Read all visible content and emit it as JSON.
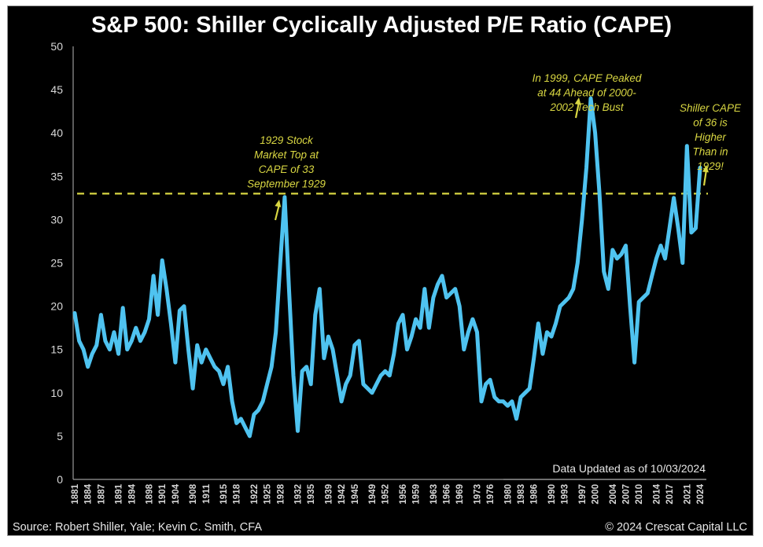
{
  "chart_data": {
    "type": "line",
    "title": "S&P 500: Shiller Cyclically Adjusted P/E Ratio (CAPE)",
    "xlabel": "",
    "ylabel": "",
    "ylim": [
      0,
      50
    ],
    "xlim": [
      1881,
      2024
    ],
    "yticks": [
      "0",
      "5",
      "10",
      "15",
      "20",
      "25",
      "30",
      "35",
      "40",
      "45",
      "50"
    ],
    "xtick_labels": [
      "1881",
      "1884",
      "1887",
      "1891",
      "1894",
      "1898",
      "1901",
      "1904",
      "1908",
      "1911",
      "1915",
      "1918",
      "1922",
      "1925",
      "1928",
      "1932",
      "1935",
      "1939",
      "1942",
      "1945",
      "1949",
      "1952",
      "1956",
      "1959",
      "1963",
      "1966",
      "1969",
      "1973",
      "1976",
      "1980",
      "1983",
      "1986",
      "1990",
      "1993",
      "1997",
      "2000",
      "2004",
      "2007",
      "2010",
      "2014",
      "2017",
      "2021",
      "2024"
    ],
    "grid": false,
    "series": [
      {
        "name": "Shiller CAPE",
        "color": "#4fc3f0",
        "x": [
          1881,
          1882,
          1883,
          1884,
          1885,
          1886,
          1887,
          1888,
          1889,
          1890,
          1891,
          1892,
          1893,
          1894,
          1895,
          1896,
          1897,
          1898,
          1899,
          1900,
          1901,
          1902,
          1903,
          1904,
          1905,
          1906,
          1907,
          1908,
          1909,
          1910,
          1911,
          1912,
          1913,
          1914,
          1915,
          1916,
          1917,
          1918,
          1919,
          1920,
          1921,
          1922,
          1923,
          1924,
          1925,
          1926,
          1927,
          1928,
          1929,
          1930,
          1931,
          1932,
          1933,
          1934,
          1935,
          1936,
          1937,
          1938,
          1939,
          1940,
          1941,
          1942,
          1943,
          1944,
          1945,
          1946,
          1947,
          1948,
          1949,
          1950,
          1951,
          1952,
          1953,
          1954,
          1955,
          1956,
          1957,
          1958,
          1959,
          1960,
          1961,
          1962,
          1963,
          1964,
          1965,
          1966,
          1967,
          1968,
          1969,
          1970,
          1971,
          1972,
          1973,
          1974,
          1975,
          1976,
          1977,
          1978,
          1979,
          1980,
          1981,
          1982,
          1983,
          1984,
          1985,
          1986,
          1987,
          1988,
          1989,
          1990,
          1991,
          1992,
          1993,
          1994,
          1995,
          1996,
          1997,
          1998,
          1999,
          2000,
          2001,
          2002,
          2003,
          2004,
          2005,
          2006,
          2007,
          2008,
          2009,
          2010,
          2011,
          2012,
          2013,
          2014,
          2015,
          2016,
          2017,
          2018,
          2019,
          2020,
          2021,
          2022,
          2023,
          2024
        ],
        "values": [
          19.2,
          16.0,
          15.0,
          13.0,
          14.5,
          15.5,
          19.0,
          16.0,
          15.0,
          17.0,
          14.5,
          19.8,
          15.0,
          16.0,
          17.5,
          16.0,
          17.0,
          18.5,
          23.5,
          19.0,
          25.3,
          22.0,
          18.0,
          13.5,
          19.5,
          20.0,
          15.0,
          10.5,
          15.5,
          13.5,
          15.0,
          14.0,
          13.0,
          12.5,
          11.0,
          13.0,
          9.0,
          6.5,
          7.0,
          6.0,
          5.0,
          7.5,
          8.0,
          9.0,
          11.0,
          13.0,
          17.0,
          25.0,
          32.6,
          22.0,
          12.0,
          5.6,
          12.5,
          13.0,
          11.0,
          19.0,
          22.0,
          14.0,
          16.5,
          15.0,
          12.0,
          9.0,
          11.0,
          12.0,
          15.5,
          16.0,
          11.0,
          10.5,
          10.0,
          11.0,
          12.0,
          12.5,
          12.0,
          14.5,
          18.0,
          19.0,
          15.0,
          16.5,
          18.5,
          17.5,
          22.0,
          17.5,
          21.0,
          22.5,
          23.5,
          21.0,
          21.5,
          22.0,
          20.0,
          15.0,
          17.0,
          18.5,
          17.0,
          9.0,
          11.0,
          11.5,
          9.5,
          9.0,
          9.0,
          8.5,
          9.0,
          7.0,
          9.5,
          10.0,
          10.5,
          14.0,
          18.0,
          14.5,
          17.0,
          16.5,
          18.0,
          20.0,
          20.5,
          21.0,
          22.0,
          25.0,
          30.0,
          36.0,
          44.0,
          40.0,
          33.0,
          24.0,
          22.0,
          26.5,
          25.5,
          26.0,
          27.0,
          20.0,
          13.5,
          20.5,
          21.0,
          21.5,
          23.5,
          25.5,
          27.0,
          25.5,
          29.0,
          32.5,
          29.0,
          25.0,
          38.5,
          28.5,
          29.0,
          36.0
        ]
      }
    ],
    "reference_line": {
      "value": 33,
      "style": "dashed",
      "color": "#d8d642"
    },
    "annotations": [
      {
        "lines": [
          "1929 Stock",
          "Market Top at",
          "CAPE of 33",
          "September 1929"
        ],
        "arrow_year": 1929,
        "arrow_value": 32.6
      },
      {
        "lines": [
          "In 1999, CAPE Peaked",
          "at 44 Ahead of 2000-",
          "2002 Tech Bust"
        ],
        "arrow_year": 1999,
        "arrow_value": 44
      },
      {
        "lines": [
          "Shiller CAPE",
          "of 36 is",
          "Higher",
          "Than in",
          "1929!"
        ],
        "arrow_year": 2024,
        "arrow_value": 36
      }
    ],
    "note": "Data Updated as of 10/03/2024"
  },
  "footer": {
    "source": "Source: Robert Shiller, Yale; Kevin C. Smith, CFA",
    "copyright": "© 2024 Crescat Capital LLC"
  },
  "colors": {
    "line": "#4fc3f0",
    "annotation": "#d8d642",
    "background": "#000000",
    "text": "#ffffff"
  }
}
